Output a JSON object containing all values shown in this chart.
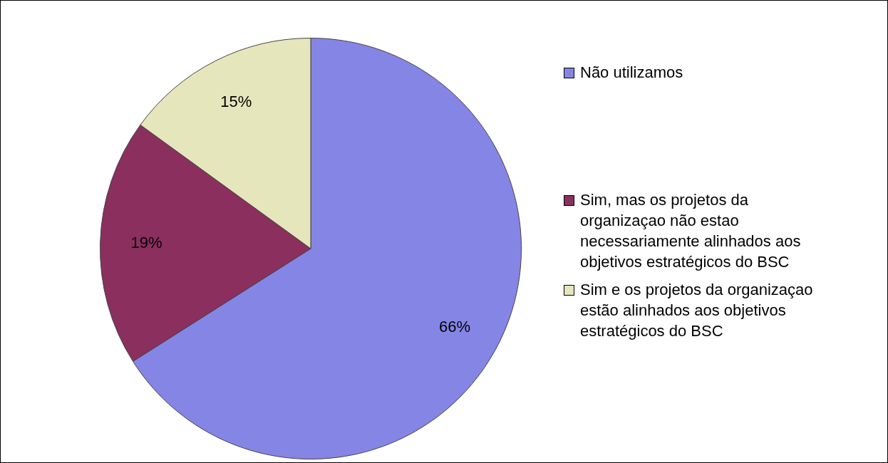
{
  "chart_data": {
    "type": "pie",
    "categories": [
      "Não utilizamos",
      "Sim, mas os projetos da organizaçao não estao necessariamente alinhados aos objetivos estratégicos do BSC",
      "Sim e os projetos da organizaçao estão alinhados aos objetivos estratégicos do BSC"
    ],
    "values": [
      66,
      19,
      15
    ],
    "colors": [
      "#8585e6",
      "#8a2f5e",
      "#e6e6bc"
    ],
    "value_labels": [
      "66%",
      "19%",
      "15%"
    ],
    "legend": "right"
  }
}
